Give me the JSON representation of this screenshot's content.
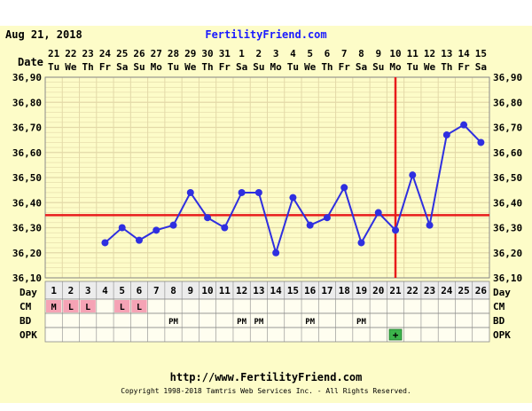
{
  "header": {
    "date_label": "Aug 21, 2018",
    "site_title": "FertilityFriend.com"
  },
  "footer": {
    "url": "http://www.FertilityFriend.com",
    "copyright": "Copyright 1998-2018 Tamtris Web Services Inc. - All Rights Reserved."
  },
  "row_labels": {
    "date": "Date",
    "day": "Day",
    "cm": "CM",
    "bd": "BD",
    "opk": "OPK"
  },
  "colors": {
    "background": "#fdfcc8",
    "grid": "#e3d9a8",
    "border": "#8a8a8a",
    "line": "#2f2fe0",
    "coverline": "#e81c1c",
    "cm_cell": "#f5a3b5",
    "opk_positive": "#3cb44b",
    "site_title": "#1a1aff"
  },
  "chart_data": {
    "type": "line",
    "xlabel": "Day",
    "ylabel": "",
    "ylim": [
      36.1,
      36.9
    ],
    "y_ticks": [
      "36,10",
      "36,20",
      "36,30",
      "36,40",
      "36,50",
      "36,60",
      "36,70",
      "36,80",
      "36,90"
    ],
    "dates": [
      "21",
      "22",
      "23",
      "24",
      "25",
      "26",
      "27",
      "28",
      "29",
      "30",
      "31",
      "1",
      "2",
      "3",
      "4",
      "5",
      "6",
      "7",
      "8",
      "9",
      "10",
      "11",
      "12",
      "13",
      "14",
      "15"
    ],
    "weekdays": [
      "Tu",
      "We",
      "Th",
      "Fr",
      "Sa",
      "Su",
      "Mo",
      "Tu",
      "We",
      "Th",
      "Fr",
      "Sa",
      "Su",
      "Mo",
      "Tu",
      "We",
      "Th",
      "Fr",
      "Sa",
      "Su",
      "Mo",
      "Tu",
      "We",
      "Th",
      "Fr",
      "Sa"
    ],
    "days": [
      "1",
      "2",
      "3",
      "4",
      "5",
      "6",
      "7",
      "8",
      "9",
      "10",
      "11",
      "12",
      "13",
      "14",
      "15",
      "16",
      "17",
      "18",
      "19",
      "20",
      "21",
      "22",
      "23",
      "24",
      "25",
      "26"
    ],
    "series": [
      {
        "values": [
          null,
          null,
          null,
          36.24,
          36.3,
          36.25,
          36.29,
          36.31,
          36.44,
          36.34,
          36.3,
          36.44,
          36.44,
          36.2,
          36.42,
          36.31,
          36.34,
          36.46,
          36.24,
          36.36,
          36.29,
          36.51,
          36.31,
          36.67,
          36.71,
          36.64
        ]
      }
    ],
    "coverline": 36.35,
    "ovulation_day": "21",
    "cm": [
      "M",
      "L",
      "L",
      "",
      "L",
      "L",
      "",
      "",
      "",
      "",
      "",
      "",
      "",
      "",
      "",
      "",
      "",
      "",
      "",
      "",
      "",
      "",
      "",
      "",
      "",
      ""
    ],
    "bd": [
      "",
      "",
      "",
      "",
      "",
      "",
      "",
      "PM",
      "",
      "",
      "",
      "PM",
      "PM",
      "",
      "",
      "PM",
      "",
      "",
      "PM",
      "",
      "",
      "",
      "",
      "",
      "",
      ""
    ],
    "opk": [
      "",
      "",
      "",
      "",
      "",
      "",
      "",
      "",
      "",
      "",
      "",
      "",
      "",
      "",
      "",
      "",
      "",
      "",
      "",
      "",
      "+",
      "",
      "",
      "",
      "",
      ""
    ]
  }
}
